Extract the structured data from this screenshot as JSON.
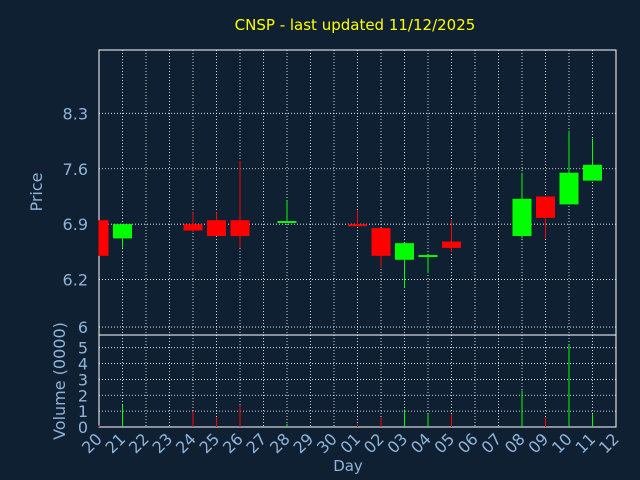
{
  "colors": {
    "background": "#102033",
    "plot_background": "#102033",
    "frame": "#ffffff",
    "grid": "#ffffff",
    "title": "#ffff00",
    "text": "#8fb4d8",
    "up": "#00ff00",
    "down": "#ff0000"
  },
  "chart_data": {
    "type": "candlestick",
    "title": "CNSP - last updated 11/12/2025",
    "xlabel": "Day",
    "price_panel": {
      "ylabel": "Price",
      "ylim": [
        5.5,
        9.1
      ],
      "yticks": [
        "8.3",
        "7.6",
        "6.9",
        "6.2",
        "6"
      ],
      "ytick_values": [
        8.3,
        7.6,
        6.9,
        6.2,
        5.6
      ]
    },
    "volume_panel": {
      "ylabel": "Volume (0000)",
      "ylim": [
        0,
        5.8
      ],
      "yticks": [
        "0",
        "1",
        "2",
        "3",
        "4",
        "5"
      ]
    },
    "x_tick_labels": [
      "20",
      "21",
      "22",
      "23",
      "24",
      "25",
      "26",
      "27",
      "28",
      "29",
      "30",
      "01",
      "02",
      "03",
      "04",
      "05",
      "06",
      "07",
      "08",
      "09",
      "10",
      "11",
      "12"
    ],
    "candles": [
      {
        "day": "20",
        "open": 6.95,
        "close": 6.5,
        "high": 6.95,
        "low": 6.5,
        "volume": 0.1
      },
      {
        "day": "21",
        "open": 6.72,
        "close": 6.9,
        "high": 6.9,
        "low": 6.6,
        "volume": 1.4
      },
      {
        "day": "24",
        "open": 6.9,
        "close": 6.82,
        "high": 7.05,
        "low": 6.8,
        "volume": 1.0
      },
      {
        "day": "25",
        "open": 6.95,
        "close": 6.75,
        "high": 7.05,
        "low": 6.75,
        "volume": 0.6
      },
      {
        "day": "26",
        "open": 6.95,
        "close": 6.75,
        "high": 7.7,
        "low": 6.6,
        "volume": 1.4
      },
      {
        "day": "28",
        "open": 6.92,
        "close": 6.94,
        "high": 7.2,
        "low": 6.92,
        "volume": 0.2
      },
      {
        "day": "01",
        "open": 6.9,
        "close": 6.88,
        "high": 7.08,
        "low": 6.88,
        "volume": 0.2
      },
      {
        "day": "02",
        "open": 6.85,
        "close": 6.5,
        "high": 6.85,
        "low": 6.35,
        "volume": 0.6
      },
      {
        "day": "03",
        "open": 6.45,
        "close": 6.66,
        "high": 6.66,
        "low": 6.1,
        "volume": 1.1
      },
      {
        "day": "04",
        "open": 6.49,
        "close": 6.51,
        "high": 6.51,
        "low": 6.28,
        "volume": 0.8
      },
      {
        "day": "05",
        "open": 6.68,
        "close": 6.6,
        "high": 6.95,
        "low": 6.55,
        "volume": 0.8
      },
      {
        "day": "08",
        "open": 6.75,
        "close": 7.22,
        "high": 7.55,
        "low": 6.72,
        "volume": 2.3
      },
      {
        "day": "09",
        "open": 7.25,
        "close": 6.98,
        "high": 7.25,
        "low": 6.72,
        "volume": 0.6
      },
      {
        "day": "10",
        "open": 7.15,
        "close": 7.55,
        "high": 8.08,
        "low": 7.15,
        "volume": 5.2
      },
      {
        "day": "11",
        "open": 7.45,
        "close": 7.65,
        "high": 7.98,
        "low": 7.45,
        "volume": 0.8
      }
    ]
  }
}
